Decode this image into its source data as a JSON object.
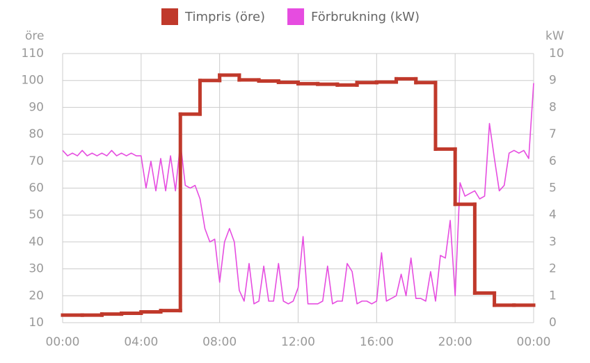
{
  "chart_data": {
    "type": "line",
    "legend": "top",
    "grid": true,
    "xlim": [
      0,
      24
    ],
    "xticks": [
      {
        "value": 0,
        "label": "00:00"
      },
      {
        "value": 4,
        "label": "04:00"
      },
      {
        "value": 8,
        "label": "08:00"
      },
      {
        "value": 12,
        "label": "12:00"
      },
      {
        "value": 16,
        "label": "16:00"
      },
      {
        "value": 20,
        "label": "20:00"
      },
      {
        "value": 24,
        "label": "00:00"
      }
    ],
    "ylabel": "öre",
    "ylim": [
      10,
      110
    ],
    "yticks": [
      10,
      20,
      30,
      40,
      50,
      60,
      70,
      80,
      90,
      100,
      110
    ],
    "y2label": "kW",
    "y2lim": [
      0,
      10
    ],
    "y2ticks": [
      0,
      1,
      2,
      3,
      4,
      5,
      6,
      7,
      8,
      9,
      10
    ],
    "series": [
      {
        "name": "Timpris (öre)",
        "color": "#c0392b",
        "step": "after",
        "step_width": 1,
        "x": [
          0,
          1,
          2,
          3,
          4,
          5,
          6,
          7,
          8,
          9,
          10,
          11,
          12,
          13,
          14,
          15,
          16,
          17,
          18,
          19,
          20,
          21,
          22,
          23
        ],
        "values": [
          12.8,
          12.8,
          13.2,
          13.5,
          14,
          14.5,
          87.5,
          100,
          102,
          100.2,
          99.8,
          99.3,
          98.8,
          98.6,
          98.3,
          99.2,
          99.4,
          100.6,
          99.2,
          74.5,
          54,
          21,
          16.5,
          16.5
        ]
      },
      {
        "name": "Förbrukning (kW)",
        "color": "#e64ce0",
        "axis": "y2",
        "x": [
          0,
          0.25,
          0.5,
          0.75,
          1,
          1.25,
          1.5,
          1.75,
          2,
          2.25,
          2.5,
          2.75,
          3,
          3.25,
          3.5,
          3.75,
          4,
          4.25,
          4.5,
          4.75,
          5,
          5.25,
          5.5,
          5.75,
          6,
          6.25,
          6.5,
          6.75,
          7,
          7.25,
          7.5,
          7.75,
          8,
          8.25,
          8.5,
          8.75,
          9,
          9.25,
          9.5,
          9.75,
          10,
          10.25,
          10.5,
          10.75,
          11,
          11.25,
          11.5,
          11.75,
          12,
          12.25,
          12.5,
          12.75,
          13,
          13.25,
          13.5,
          13.75,
          14,
          14.25,
          14.5,
          14.75,
          15,
          15.25,
          15.5,
          15.75,
          16,
          16.25,
          16.5,
          16.75,
          17,
          17.25,
          17.5,
          17.75,
          18,
          18.25,
          18.5,
          18.75,
          19,
          19.25,
          19.5,
          19.75,
          20,
          20.25,
          20.5,
          20.75,
          21,
          21.25,
          21.5,
          21.75,
          22,
          22.25,
          22.5,
          22.75,
          23,
          23.25,
          23.5,
          23.75,
          24
        ],
        "values": [
          6.4,
          6.2,
          6.3,
          6.2,
          6.4,
          6.2,
          6.3,
          6.2,
          6.3,
          6.2,
          6.4,
          6.2,
          6.3,
          6.2,
          6.3,
          6.2,
          6.2,
          5.0,
          6.0,
          4.9,
          6.1,
          4.9,
          6.2,
          4.9,
          6.7,
          5.1,
          5.0,
          5.1,
          4.6,
          3.5,
          3.0,
          3.1,
          1.5,
          3.0,
          3.5,
          3.0,
          1.2,
          0.8,
          2.2,
          0.7,
          0.8,
          2.1,
          0.8,
          0.8,
          2.2,
          0.8,
          0.7,
          0.8,
          1.3,
          3.2,
          0.7,
          0.7,
          0.7,
          0.8,
          2.1,
          0.7,
          0.8,
          0.8,
          2.2,
          1.9,
          0.7,
          0.8,
          0.8,
          0.7,
          0.8,
          2.6,
          0.8,
          0.9,
          1.0,
          1.8,
          1.0,
          2.4,
          0.9,
          0.9,
          0.8,
          1.9,
          0.8,
          2.5,
          2.4,
          3.8,
          1.0,
          5.2,
          4.7,
          4.8,
          4.9,
          4.6,
          4.7,
          7.4,
          6.1,
          4.9,
          5.1,
          6.3,
          6.4,
          6.3,
          6.4,
          6.1,
          8.9
        ]
      }
    ]
  }
}
